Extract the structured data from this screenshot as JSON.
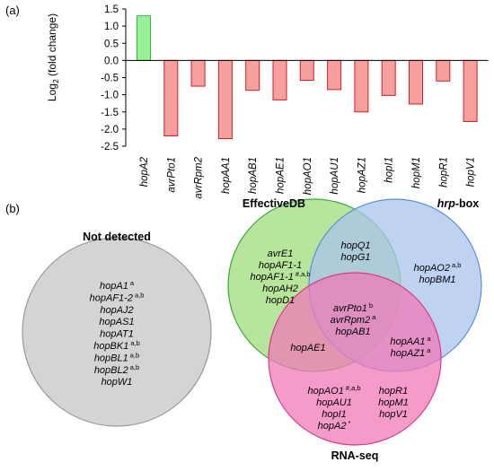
{
  "panel_a_label": "(a)",
  "panel_b_label": "(b)",
  "chart_data": {
    "type": "bar",
    "title": "",
    "xlabel": "",
    "ylabel": "Log2 (fold change)",
    "ylabel_base": "Log",
    "ylabel_sub": "2",
    "ylabel_rest": " (fold change)",
    "ylim": [
      -2.5,
      1.5
    ],
    "yticks": [
      "1.5",
      "1.0",
      "0.5",
      "0.0",
      "-0.5",
      "-1.0",
      "-1.5",
      "-2.0",
      "-2.5"
    ],
    "ytick_values": [
      1.5,
      1.0,
      0.5,
      0.0,
      -0.5,
      -1.0,
      -1.5,
      -2.0,
      -2.5
    ],
    "grid": false,
    "categories": [
      "hopA2",
      "avrPto1",
      "avrRpm2",
      "hopAA1",
      "hopAB1",
      "hopAE1",
      "hopAO1",
      "hopAU1",
      "hopAZ1",
      "hopI1",
      "hopM1",
      "hopR1",
      "hopV1"
    ],
    "values": [
      1.3,
      -2.2,
      -0.75,
      -2.28,
      -0.87,
      -1.15,
      -0.58,
      -0.85,
      -1.5,
      -1.02,
      -1.27,
      -0.6,
      -1.78
    ],
    "colors": {
      "positive_fill": "#99f099",
      "positive_stroke": "#33bb33",
      "negative_fill": "#f8a0a0",
      "negative_stroke": "#cc2222"
    }
  },
  "venn": {
    "not_detected": {
      "title": "Not detected",
      "fill": "#d4d4d4",
      "stroke": "#999999",
      "genes": [
        {
          "name": "hopA1",
          "sup": "a"
        },
        {
          "name": "hopAF1-2",
          "sup": "a,b"
        },
        {
          "name": "hopAJ2",
          "sup": ""
        },
        {
          "name": "hopAS1",
          "sup": ""
        },
        {
          "name": "hopAT1",
          "sup": ""
        },
        {
          "name": "hopBK1",
          "sup": "a,b"
        },
        {
          "name": "hopBL1",
          "sup": "a,b"
        },
        {
          "name": "hopBL2",
          "sup": "a,b"
        },
        {
          "name": "hopW1",
          "sup": ""
        }
      ]
    },
    "sets": [
      {
        "key": "effective",
        "title": "EffectiveDB",
        "fill": "#9edc7a",
        "stroke": "#3caa3c"
      },
      {
        "key": "hrp",
        "title_italic": "hrp",
        "title_rest": "-box",
        "fill": "#a9c3ec",
        "stroke": "#5b8fd6"
      },
      {
        "key": "rnaseq",
        "title": "RNA-seq",
        "fill": "#f07ab8",
        "stroke": "#d23c8c"
      }
    ],
    "regions": {
      "effective_only": [
        {
          "name": "avrE1",
          "sup": ""
        },
        {
          "name": "hopAF1-1",
          "sup": ""
        },
        {
          "name": "hopAF1-1",
          "sup": "#,a,b"
        },
        {
          "name": "hopAH2",
          "sup": ""
        },
        {
          "name": "hopD1",
          "sup": ""
        }
      ],
      "effective_hrp": [
        {
          "name": "hopQ1",
          "sup": ""
        },
        {
          "name": "hopG1",
          "sup": ""
        }
      ],
      "hrp_only": [
        {
          "name": "hopAO2",
          "sup": "a,b"
        },
        {
          "name": "hopBM1",
          "sup": ""
        }
      ],
      "all_three": [
        {
          "name": "avrPto1",
          "sup": "b"
        },
        {
          "name": "avrRpm2",
          "sup": "a"
        },
        {
          "name": "hopAB1",
          "sup": ""
        }
      ],
      "effective_rnaseq": [
        {
          "name": "hopAE1",
          "sup": ""
        }
      ],
      "hrp_rnaseq": [
        {
          "name": "hopAA1",
          "sup": "a"
        },
        {
          "name": "hopAZ1",
          "sup": "a"
        }
      ],
      "rnaseq_only_left": [
        {
          "name": "hopAO1",
          "sup": "#,a,b"
        },
        {
          "name": "hopAU1",
          "sup": ""
        },
        {
          "name": "hopI1",
          "sup": ""
        },
        {
          "name": "hopA2",
          "sup": "*"
        }
      ],
      "rnaseq_only_right": [
        {
          "name": "hopR1",
          "sup": ""
        },
        {
          "name": "hopM1",
          "sup": ""
        },
        {
          "name": "hopV1",
          "sup": ""
        }
      ]
    }
  }
}
